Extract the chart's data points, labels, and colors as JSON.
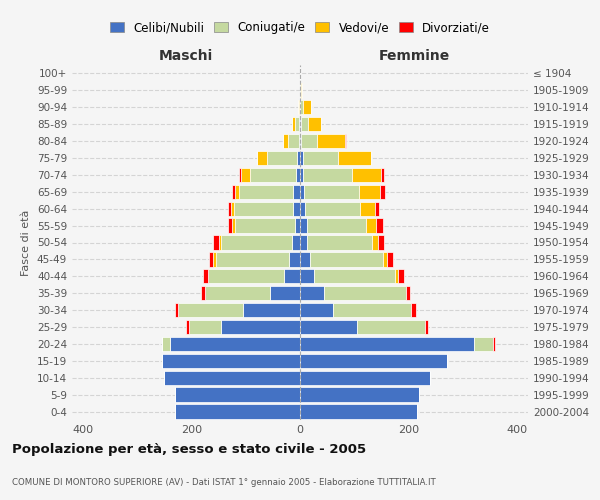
{
  "age_groups": [
    "0-4",
    "5-9",
    "10-14",
    "15-19",
    "20-24",
    "25-29",
    "30-34",
    "35-39",
    "40-44",
    "45-49",
    "50-54",
    "55-59",
    "60-64",
    "65-69",
    "70-74",
    "75-79",
    "80-84",
    "85-89",
    "90-94",
    "95-99",
    "100+"
  ],
  "birth_years": [
    "2000-2004",
    "1995-1999",
    "1990-1994",
    "1985-1989",
    "1980-1984",
    "1975-1979",
    "1970-1974",
    "1965-1969",
    "1960-1964",
    "1955-1959",
    "1950-1954",
    "1945-1949",
    "1940-1944",
    "1935-1939",
    "1930-1934",
    "1925-1929",
    "1920-1924",
    "1915-1919",
    "1910-1914",
    "1905-1909",
    "≤ 1904"
  ],
  "maschi": {
    "celibi": [
      230,
      230,
      250,
      255,
      240,
      145,
      105,
      55,
      30,
      20,
      15,
      10,
      12,
      12,
      8,
      5,
      2,
      2,
      0,
      0,
      0
    ],
    "coniugati": [
      0,
      0,
      0,
      0,
      15,
      60,
      120,
      120,
      140,
      135,
      130,
      110,
      110,
      100,
      85,
      55,
      20,
      8,
      2,
      0,
      0
    ],
    "vedovi": [
      0,
      0,
      0,
      0,
      0,
      0,
      0,
      0,
      0,
      5,
      5,
      5,
      5,
      8,
      15,
      20,
      10,
      5,
      2,
      0,
      0
    ],
    "divorziati": [
      0,
      0,
      0,
      0,
      0,
      5,
      5,
      8,
      8,
      8,
      10,
      8,
      5,
      5,
      5,
      0,
      0,
      0,
      0,
      0,
      0
    ]
  },
  "femmine": {
    "nubili": [
      215,
      220,
      240,
      270,
      320,
      105,
      60,
      45,
      25,
      18,
      12,
      12,
      10,
      8,
      5,
      5,
      2,
      2,
      0,
      0,
      0
    ],
    "coniugate": [
      0,
      0,
      0,
      0,
      35,
      125,
      145,
      150,
      150,
      135,
      120,
      110,
      100,
      100,
      90,
      65,
      30,
      12,
      5,
      2,
      0
    ],
    "vedove": [
      0,
      0,
      0,
      0,
      0,
      0,
      0,
      0,
      5,
      8,
      12,
      18,
      28,
      40,
      55,
      60,
      50,
      25,
      15,
      2,
      0
    ],
    "divorziate": [
      0,
      0,
      0,
      0,
      5,
      5,
      8,
      8,
      12,
      10,
      10,
      12,
      8,
      8,
      5,
      0,
      2,
      0,
      0,
      0,
      0
    ]
  },
  "colors": {
    "celibi": "#4472c4",
    "coniugati": "#c5d9a0",
    "vedovi": "#ffc000",
    "divorziati": "#ff0000"
  },
  "title": "Popolazione per età, sesso e stato civile - 2005",
  "subtitle": "COMUNE DI MONTORO SUPERIORE (AV) - Dati ISTAT 1° gennaio 2005 - Elaborazione TUTTITALIA.IT",
  "xlabel_left": "Maschi",
  "xlabel_right": "Femmine",
  "ylabel_left": "Fasce di età",
  "xlim": 420,
  "background_color": "#f5f5f5",
  "plot_bg_color": "#f5f5f5",
  "grid_color": "#cccccc",
  "legend_labels": [
    "Celibi/Nubili",
    "Coniugati/e",
    "Vedovi/e",
    "Divorziati/e"
  ]
}
